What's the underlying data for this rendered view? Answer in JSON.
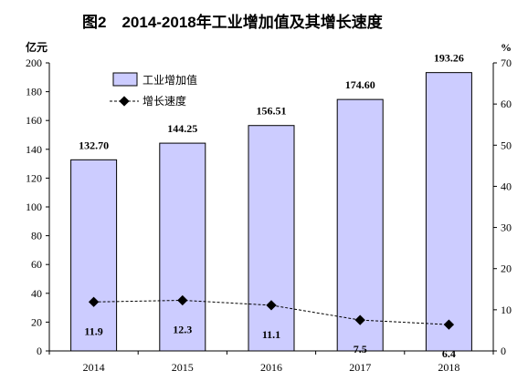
{
  "chart_data": {
    "type": "bar",
    "title": "图2　2014-2018年工业增加值及其增长速度",
    "categories": [
      "2014",
      "2015",
      "2016",
      "2017",
      "2018"
    ],
    "series": [
      {
        "name": "工业增加值",
        "type": "bar",
        "axis": "left",
        "values": [
          132.7,
          144.25,
          156.51,
          174.6,
          193.26
        ],
        "labels": [
          "132.70",
          "144.25",
          "156.51",
          "174.60",
          "193.26"
        ]
      },
      {
        "name": "增长速度",
        "type": "line",
        "axis": "right",
        "values": [
          11.9,
          12.3,
          11.1,
          7.5,
          6.4
        ],
        "labels": [
          "11.9",
          "12.3",
          "11.1",
          "7.5",
          "6.4"
        ]
      }
    ],
    "y_left": {
      "label": "亿元",
      "min": 0,
      "max": 200,
      "step": 20
    },
    "y_right": {
      "label": "%",
      "min": 0,
      "max": 70,
      "step": 10
    },
    "legend_position": "top-left",
    "grid": false
  },
  "colors": {
    "bar_fill": "#ccccff",
    "bar_stroke": "#000000",
    "line": "#000000",
    "marker": "#000000"
  }
}
